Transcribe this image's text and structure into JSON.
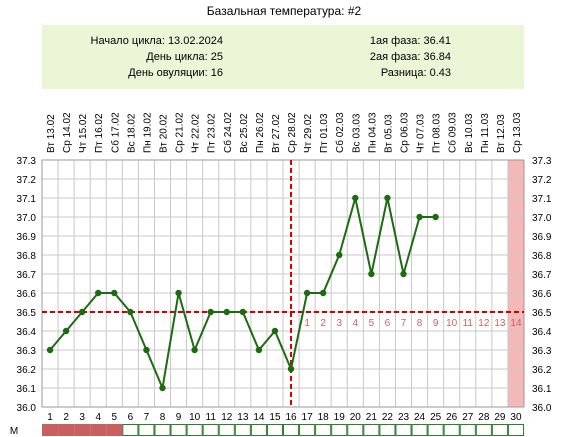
{
  "title": "Базальная температура: #2",
  "info": {
    "left": [
      {
        "label": "Начало цикла:",
        "value": "13.02.2024"
      },
      {
        "label": "День цикла:",
        "value": "25"
      },
      {
        "label": "День овуляции:",
        "value": "16"
      }
    ],
    "right": [
      {
        "label": "1ая фаза:",
        "value": "36.41"
      },
      {
        "label": "2ая фаза:",
        "value": "36.84"
      },
      {
        "label": "Разница:",
        "value": "0.43"
      }
    ]
  },
  "colors": {
    "line": "#1e6a12",
    "marker": "#1e6a12",
    "grid": "#c8c8c8",
    "coverline": "#cc0000",
    "phase_numbers": "#d06060",
    "highlight_day": "#f5b8b8",
    "menstruation": "#c86060",
    "day_strip_border": "#2e7d32",
    "info_bg": "#eaf6d6"
  },
  "chart_data": {
    "type": "line",
    "ylim": [
      36.0,
      37.3
    ],
    "ytick_step": 0.1,
    "grid": true,
    "coverline": 36.5,
    "ovulation_day": 16,
    "highlight_day": 30,
    "dates": [
      "Вт 13.02",
      "Ср 14.02",
      "Чт 15.02",
      "Пт 16.02",
      "Сб 17.02",
      "Вс 18.02",
      "Пн 19.02",
      "Вт 20.02",
      "Ср 21.02",
      "Чт 22.02",
      "Пт 23.02",
      "Сб 24.02",
      "Вс 25.02",
      "Пн 26.02",
      "Вт 27.02",
      "Ср 28.02",
      "Чт 29.02",
      "Пт 01.03",
      "Сб 02.03",
      "Вс 03.03",
      "Пн 04.03",
      "Вт 05.03",
      "Ср 06.03",
      "Чт 07.03",
      "Пт 08.03",
      "Сб 09.03",
      "Вс 10.03",
      "Пн 11.03",
      "Вт 12.03",
      "Ср 13.03"
    ],
    "days": [
      1,
      2,
      3,
      4,
      5,
      6,
      7,
      8,
      9,
      10,
      11,
      12,
      13,
      14,
      15,
      16,
      17,
      18,
      19,
      20,
      21,
      22,
      23,
      24,
      25,
      26,
      27,
      28,
      29,
      30
    ],
    "temperatures": [
      36.3,
      36.4,
      36.5,
      36.6,
      36.6,
      36.5,
      36.3,
      36.1,
      36.6,
      36.3,
      36.5,
      36.5,
      36.5,
      36.3,
      36.4,
      36.2,
      36.6,
      36.6,
      36.8,
      37.1,
      36.7,
      37.1,
      36.7,
      37.0,
      37.0
    ],
    "phase_numbers": [
      1,
      2,
      3,
      4,
      5,
      6,
      7,
      8,
      9,
      10,
      11,
      12,
      13,
      14
    ],
    "phase_start_day": 17
  },
  "day_strip": {
    "label": "М",
    "menstruation_days": [
      1,
      2,
      3,
      4,
      5
    ]
  }
}
